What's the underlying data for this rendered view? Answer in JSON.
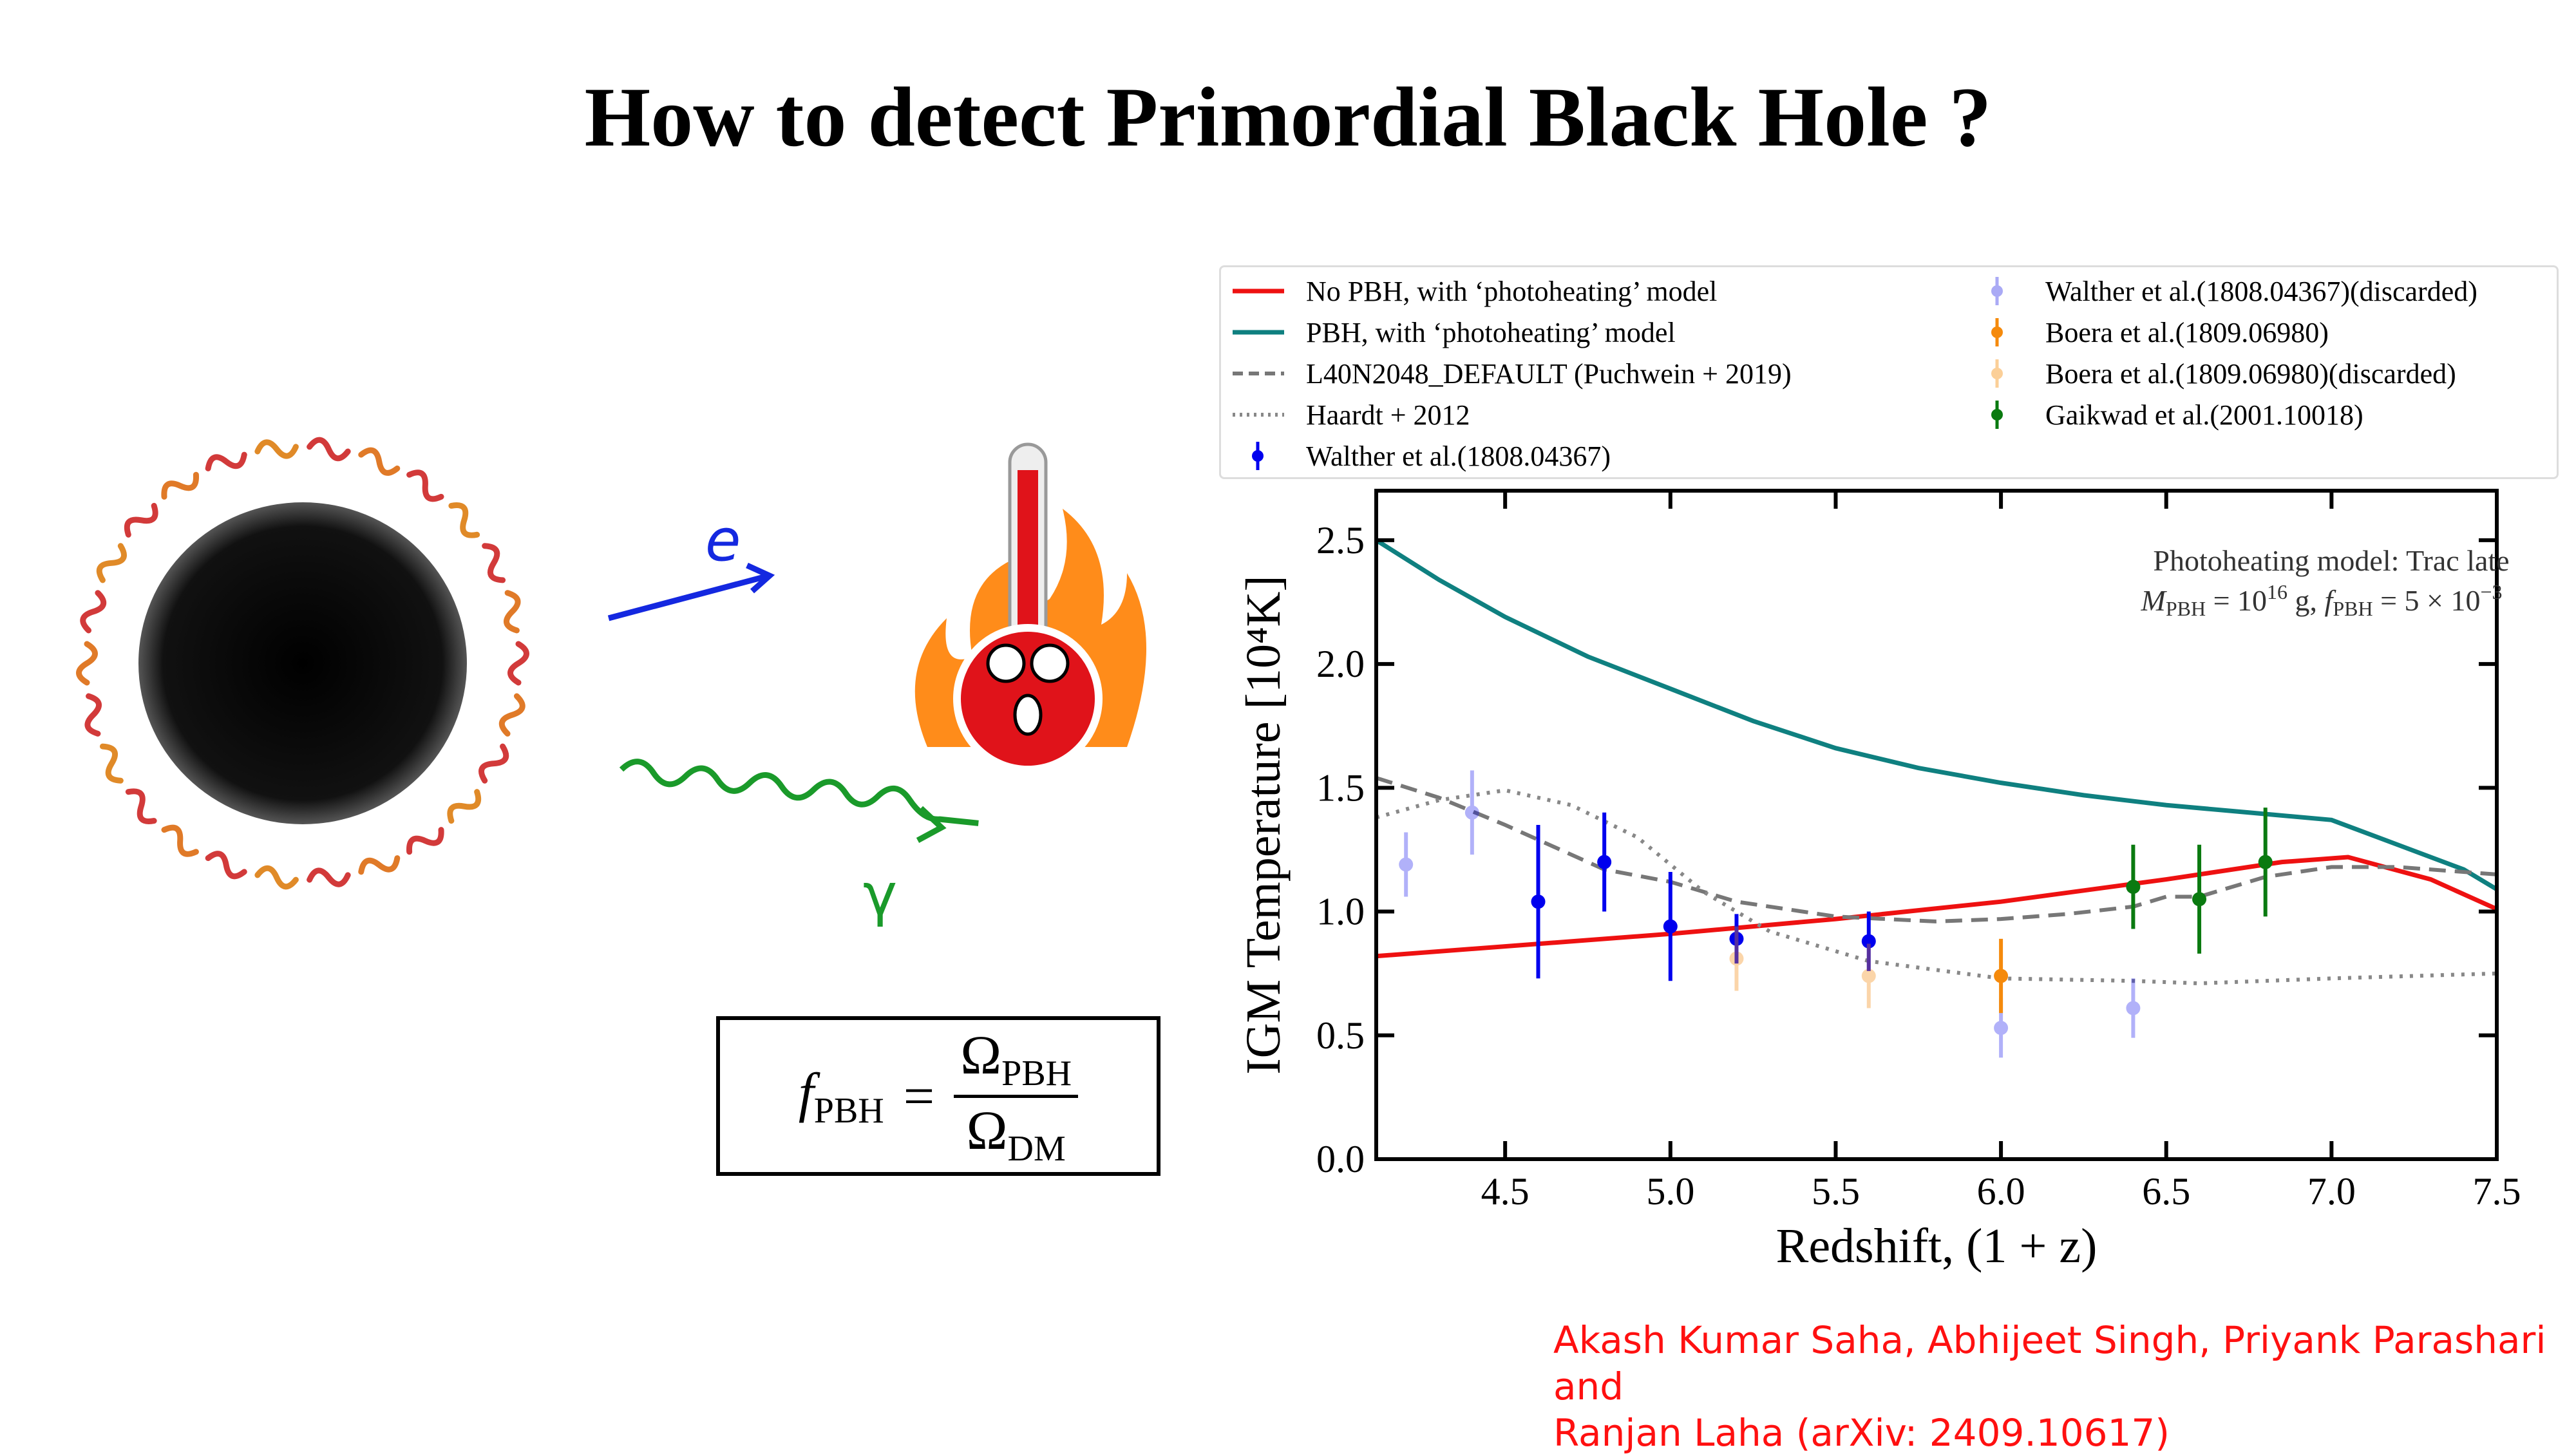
{
  "title": "How to detect Primordial Black Hole ?",
  "illustration": {
    "electron_label": "e",
    "photon_label": "γ"
  },
  "formula": {
    "lhs": "f",
    "lhs_sub": "PBH",
    "equals": "=",
    "num": "Ω",
    "num_sub": "PBH",
    "den": "Ω",
    "den_sub": "DM"
  },
  "authors": {
    "line1": "Akash Kumar Saha, Abhijeet Singh, Priyank Parashari and",
    "line2": "Ranjan Laha (arXiv: 2409.10617)"
  },
  "legend": [
    {
      "label": "No PBH, with ‘photoheating’ model",
      "style": "solid",
      "color": "#ee1111"
    },
    {
      "label": "PBH, with ‘photoheating’ model",
      "style": "solid",
      "color": "#0f8080"
    },
    {
      "label": "L40N2048_DEFAULT (Puchwein + 2019)",
      "style": "dashed",
      "color": "#777777"
    },
    {
      "label": "Haardt + 2012",
      "style": "dotted",
      "color": "#888888"
    },
    {
      "label": "Walther et al.(1808.04367)",
      "style": "errorbar",
      "color": "#0000ee"
    },
    {
      "label": "Walther et al.(1808.04367)(discarded)",
      "style": "errorbar-faint",
      "color": "#aaaaf5"
    },
    {
      "label": "Boera et al.(1809.06980)",
      "style": "errorbar",
      "color": "#f58a0c"
    },
    {
      "label": "Boera et al.(1809.06980)(discarded)",
      "style": "errorbar-faint",
      "color": "#fbcf98"
    },
    {
      "label": "Gaikwad et al.(2001.10018)",
      "style": "errorbar",
      "color": "#0a7a10"
    }
  ],
  "chart_data": {
    "type": "line",
    "xlabel": "Redshift, (1 + z)",
    "ylabel": "IGM Temperature [10⁴K]",
    "xlim": [
      4.11,
      7.5
    ],
    "ylim": [
      0,
      2.7
    ],
    "xticks": [
      "4.5",
      "5.0",
      "5.5",
      "6.0",
      "6.5",
      "7.0",
      "7.5"
    ],
    "yticks": [
      "0.0",
      "0.5",
      "1.0",
      "1.5",
      "2.0",
      "2.5"
    ],
    "annotation": {
      "line1": "Photoheating model:  Trac late",
      "line2_m": "M",
      "line2_msub": "PBH",
      "line2_a": " = 10",
      "line2_exp": "16",
      "line2_b": " g, ",
      "line2_f": "f",
      "line2_fsub": "PBH",
      "line2_c": " = 5 × 10",
      "line2_exp2": "−3"
    },
    "grid": false,
    "series": [
      {
        "name": "No PBH, with ‘photoheating’ model",
        "kind": "line",
        "dash": "solid",
        "color": "#ee1111",
        "x": [
          4.11,
          5.0,
          5.5,
          6.0,
          6.5,
          6.85,
          7.05,
          7.3,
          7.5
        ],
        "y": [
          0.82,
          0.91,
          0.97,
          1.04,
          1.13,
          1.2,
          1.22,
          1.13,
          1.01
        ]
      },
      {
        "name": "PBH, with ‘photoheating’ model",
        "kind": "line",
        "dash": "solid",
        "color": "#0f8080",
        "x": [
          4.11,
          4.3,
          4.5,
          4.75,
          5.0,
          5.25,
          5.5,
          5.75,
          6.0,
          6.25,
          6.5,
          6.75,
          7.0,
          7.2,
          7.4,
          7.5
        ],
        "y": [
          2.5,
          2.34,
          2.19,
          2.03,
          1.9,
          1.77,
          1.66,
          1.58,
          1.52,
          1.47,
          1.43,
          1.4,
          1.37,
          1.27,
          1.17,
          1.09
        ]
      },
      {
        "name": "L40N2048_DEFAULT (Puchwein + 2019)",
        "kind": "line",
        "dash": "dashed",
        "color": "#777777",
        "x": [
          4.11,
          4.3,
          4.5,
          4.8,
          5.0,
          5.2,
          5.5,
          5.8,
          6.0,
          6.2,
          6.4,
          6.5,
          6.6,
          6.8,
          7.0,
          7.2,
          7.5
        ],
        "y": [
          1.54,
          1.46,
          1.35,
          1.17,
          1.12,
          1.04,
          0.98,
          0.96,
          0.97,
          0.99,
          1.02,
          1.06,
          1.06,
          1.14,
          1.18,
          1.18,
          1.15
        ]
      },
      {
        "name": "Haardt + 2012",
        "kind": "line",
        "dash": "dotted",
        "color": "#888888",
        "x": [
          4.11,
          4.3,
          4.5,
          4.7,
          4.9,
          5.1,
          5.3,
          5.6,
          6.0,
          6.4,
          6.6,
          7.0,
          7.5
        ],
        "y": [
          1.38,
          1.45,
          1.49,
          1.43,
          1.3,
          1.08,
          0.92,
          0.8,
          0.73,
          0.72,
          0.71,
          0.73,
          0.75
        ]
      },
      {
        "name": "Walther et al.(1808.04367)",
        "kind": "errorbar",
        "color": "#0000ee",
        "alpha": 1,
        "x": [
          4.6,
          4.8,
          5.0,
          5.2,
          5.6
        ],
        "y": [
          1.04,
          1.2,
          0.94,
          0.89,
          0.88
        ],
        "err": [
          0.31,
          0.2,
          0.22,
          0.1,
          0.12
        ]
      },
      {
        "name": "Walther et al.(1808.04367)(discarded)",
        "kind": "errorbar",
        "color": "#0000ee",
        "alpha": 0.3,
        "x": [
          4.2,
          4.4,
          6.0,
          6.4
        ],
        "y": [
          1.19,
          1.4,
          0.53,
          0.61
        ],
        "err": [
          0.13,
          0.17,
          0.12,
          0.12
        ]
      },
      {
        "name": "Boera et al.(1809.06980)",
        "kind": "errorbar",
        "color": "#f58a0c",
        "alpha": 1,
        "x": [
          6.0
        ],
        "y": [
          0.74
        ],
        "err": [
          0.15
        ]
      },
      {
        "name": "Boera et al.(1809.06980)(discarded)",
        "kind": "errorbar",
        "color": "#f58a0c",
        "alpha": 0.35,
        "x": [
          5.2,
          5.6
        ],
        "y": [
          0.81,
          0.74
        ],
        "err": [
          0.13,
          0.13
        ]
      },
      {
        "name": "Gaikwad et al.(2001.10018)",
        "kind": "errorbar",
        "color": "#0a7a10",
        "alpha": 1,
        "x": [
          6.4,
          6.6,
          6.8
        ],
        "y": [
          1.1,
          1.05,
          1.2
        ],
        "err": [
          0.17,
          0.22,
          0.22
        ]
      }
    ]
  }
}
